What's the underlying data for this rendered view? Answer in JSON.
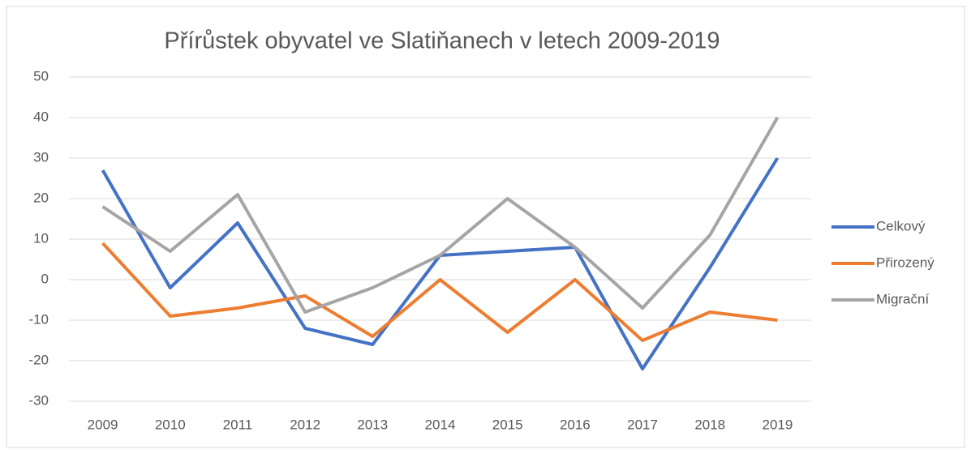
{
  "chart_data": {
    "type": "line",
    "title": "Přírůstek obyvatel ve Slatiňanech v letech 2009-2019",
    "categories": [
      "2009",
      "2010",
      "2011",
      "2012",
      "2013",
      "2014",
      "2015",
      "2016",
      "2017",
      "2018",
      "2019"
    ],
    "series": [
      {
        "name": "Celkový",
        "color": "#4472c4",
        "values": [
          27,
          -2,
          14,
          -12,
          -16,
          6,
          7,
          8,
          -22,
          3,
          30
        ]
      },
      {
        "name": "Přirozený",
        "color": "#ed7d31",
        "values": [
          9,
          -9,
          -7,
          -4,
          -14,
          0,
          -13,
          0,
          -15,
          -8,
          -10
        ]
      },
      {
        "name": "Migrační",
        "color": "#a5a5a5",
        "values": [
          18,
          7,
          21,
          -8,
          -2,
          6,
          20,
          8,
          -7,
          11,
          40
        ]
      }
    ],
    "ylim": [
      -30,
      50
    ],
    "yticks": [
      -30,
      -20,
      -10,
      0,
      10,
      20,
      30,
      40,
      50
    ],
    "grid": true,
    "legend": "right"
  }
}
